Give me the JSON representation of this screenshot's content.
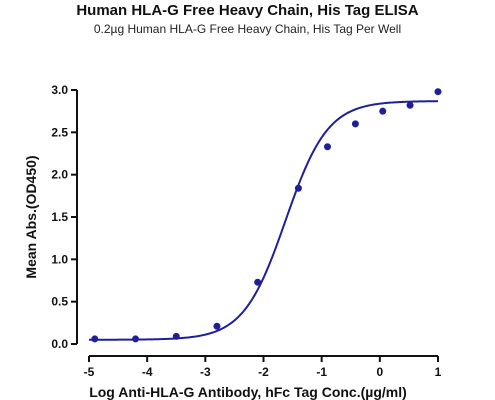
{
  "chart_data": {
    "type": "scatter",
    "title": "Human HLA-G Free Heavy Chain, His Tag ELISA",
    "subtitle": "0.2µg Human HLA-G Free Heavy Chain, His Tag Per Well",
    "xlabel": "Log Anti-HLA-G Antibody, hFc Tag Conc.(µg/ml)",
    "ylabel": "Mean Abs.(OD450)",
    "xlim": [
      -5,
      1
    ],
    "ylim": [
      0,
      3.0
    ],
    "x_ticks": [
      "-5",
      "-4",
      "-3",
      "-2",
      "-1",
      "0",
      "1"
    ],
    "y_ticks": [
      "0.0",
      "0.5",
      "1.0",
      "1.5",
      "2.0",
      "2.5",
      "3.0"
    ],
    "grid": false,
    "colors": {
      "series": "#1f1f9a",
      "axis": "#111111"
    },
    "series": [
      {
        "points": [
          {
            "x": -4.9,
            "y": 0.06
          },
          {
            "x": -4.2,
            "y": 0.06
          },
          {
            "x": -3.5,
            "y": 0.09
          },
          {
            "x": -2.8,
            "y": 0.21
          },
          {
            "x": -2.1,
            "y": 0.73
          },
          {
            "x": -1.4,
            "y": 1.84
          },
          {
            "x": -0.9,
            "y": 2.33
          },
          {
            "x": -0.42,
            "y": 2.6
          },
          {
            "x": 0.05,
            "y": 2.75
          },
          {
            "x": 0.52,
            "y": 2.82
          },
          {
            "x": 1.0,
            "y": 2.98
          }
        ],
        "fit": {
          "model": "4PL",
          "bottom": 0.05,
          "top": 2.87,
          "logEC50": -1.62,
          "hillslope": 1.2
        }
      }
    ]
  }
}
